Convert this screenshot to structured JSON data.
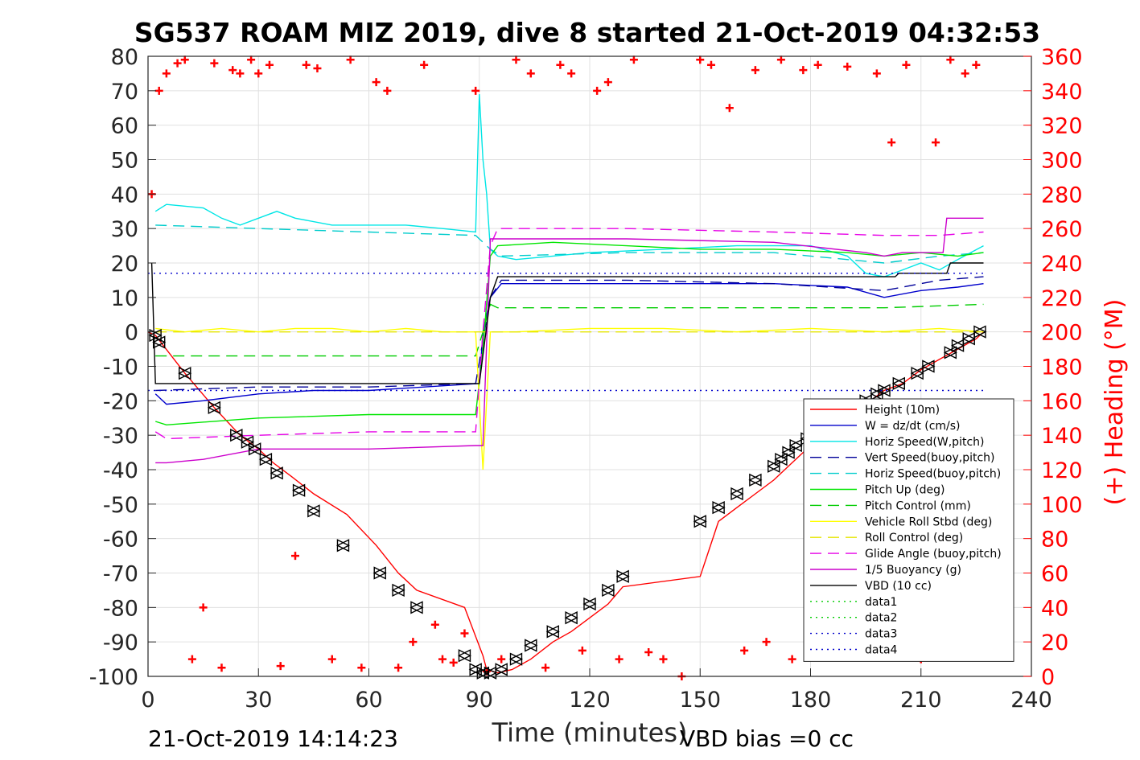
{
  "chart_data": {
    "type": "line",
    "title": "SG537 ROAM MIZ 2019, dive 8 started 21-Oct-2019 04:32:53",
    "xlabel": "Time (minutes)",
    "ylabel": "",
    "y2label": "(+) Heading (°M)",
    "xlim": [
      0,
      240
    ],
    "ylim": [
      -100,
      80
    ],
    "y2lim": [
      0,
      360
    ],
    "xticks": [
      "0",
      "30",
      "60",
      "90",
      "120",
      "150",
      "180",
      "210",
      "240"
    ],
    "yticks": [
      "-100",
      "-90",
      "-80",
      "-70",
      "-60",
      "-50",
      "-40",
      "-30",
      "-20",
      "-10",
      "0",
      "10",
      "20",
      "30",
      "40",
      "50",
      "60",
      "70",
      "80"
    ],
    "y2ticks": [
      "0",
      "20",
      "40",
      "60",
      "80",
      "100",
      "120",
      "140",
      "160",
      "180",
      "200",
      "220",
      "240",
      "260",
      "280",
      "300",
      "320",
      "340",
      "360"
    ],
    "grid": true,
    "legend_position": "bottom-right",
    "footer_left": "21-Oct-2019 14:14:23",
    "footer_right": "VBD bias =0 cc",
    "series": [
      {
        "name": "Height (10m)",
        "color": "#ff0000",
        "style": "solid",
        "x": [
          0,
          2,
          10,
          18,
          25,
          30,
          34,
          39,
          45,
          54,
          62,
          68,
          73,
          86,
          91,
          92,
          95,
          99,
          104,
          110,
          115,
          120,
          125,
          129,
          150,
          155,
          160,
          165,
          170,
          175,
          180,
          190,
          200,
          205,
          210,
          215,
          220,
          225,
          227
        ],
        "y": [
          0,
          -1,
          -12,
          -22,
          -30,
          -34,
          -38,
          -42,
          -47,
          -53,
          -62,
          -70,
          -75,
          -80,
          -94,
          -98,
          -99,
          -98,
          -95,
          -90,
          -87,
          -83,
          -79,
          -74,
          -71,
          -55,
          -51,
          -47,
          -43,
          -38,
          -33,
          -25,
          -17,
          -15,
          -11,
          -8,
          -5,
          -2,
          0
        ]
      },
      {
        "name": "W = dz/dt (cm/s)",
        "color": "#0000cc",
        "style": "solid",
        "x": [
          2,
          5,
          15,
          30,
          45,
          60,
          75,
          90,
          91,
          93,
          96,
          110,
          130,
          150,
          170,
          190,
          200,
          210,
          220,
          227
        ],
        "y": [
          -18,
          -21,
          -20,
          -18,
          -17,
          -17,
          -16,
          -15,
          0,
          10,
          14,
          14,
          14,
          14,
          14,
          13,
          10,
          12,
          13,
          14
        ]
      },
      {
        "name": "Horiz Speed(W,pitch)",
        "color": "#00e6e6",
        "style": "solid",
        "x": [
          2,
          5,
          15,
          20,
          25,
          30,
          35,
          40,
          50,
          60,
          70,
          80,
          89,
          90,
          91,
          92,
          93,
          95,
          100,
          110,
          120,
          140,
          160,
          180,
          190,
          195,
          200,
          205,
          210,
          215,
          220,
          227
        ],
        "y": [
          35,
          37,
          36,
          33,
          31,
          33,
          35,
          33,
          31,
          31,
          31,
          30,
          29,
          69,
          50,
          40,
          24,
          22,
          21,
          22,
          23,
          24,
          25,
          25,
          22,
          17,
          16,
          18,
          20,
          18,
          21,
          25
        ]
      },
      {
        "name": "Vert Speed(buoy,pitch)",
        "color": "#000099",
        "style": "dashed",
        "x": [
          2,
          30,
          60,
          89,
          93,
          96,
          130,
          170,
          200,
          215,
          227
        ],
        "y": [
          -17,
          -16,
          -16,
          -15,
          10,
          15,
          15,
          14,
          12,
          15,
          16
        ]
      },
      {
        "name": "Horiz Speed(buoy,pitch)",
        "color": "#00cccc",
        "style": "dashed",
        "x": [
          2,
          30,
          60,
          89,
          93,
          96,
          130,
          170,
          200,
          215,
          227
        ],
        "y": [
          31,
          30,
          29,
          28,
          24,
          22,
          23,
          23,
          20,
          22,
          23
        ]
      },
      {
        "name": "Pitch Up (deg)",
        "color": "#00e600",
        "style": "solid",
        "x": [
          2,
          5,
          30,
          60,
          89,
          91,
          93,
          95,
          110,
          130,
          150,
          170,
          190,
          200,
          210,
          220,
          227
        ],
        "y": [
          -26,
          -27,
          -25,
          -24,
          -24,
          -5,
          22,
          25,
          26,
          25,
          24,
          24,
          23,
          22,
          23,
          22,
          23
        ]
      },
      {
        "name": "Pitch Control (mm)",
        "color": "#00cc00",
        "style": "dashed",
        "x": [
          2,
          30,
          60,
          89,
          91,
          93,
          95,
          130,
          170,
          200,
          227
        ],
        "y": [
          -7,
          -7,
          -7,
          -7,
          0,
          8,
          7,
          7,
          7,
          7,
          8
        ]
      },
      {
        "name": "Vehicle Roll Stbd (deg)",
        "color": "#ffff00",
        "style": "solid",
        "x": [
          2,
          10,
          20,
          30,
          40,
          50,
          60,
          70,
          80,
          89,
          91,
          93,
          100,
          120,
          140,
          160,
          180,
          200,
          215,
          227
        ],
        "y": [
          1,
          0,
          1,
          0,
          1,
          1,
          0,
          1,
          0,
          0,
          -40,
          0,
          0,
          1,
          1,
          0,
          1,
          0,
          1,
          0
        ]
      },
      {
        "name": "Roll Control (deg)",
        "color": "#e6e600",
        "style": "dashed",
        "x": [
          2,
          60,
          89,
          91,
          93,
          150,
          227
        ],
        "y": [
          0,
          0,
          0,
          0,
          0,
          0,
          0
        ]
      },
      {
        "name": "Glide Angle (buoy,pitch)",
        "color": "#e600e6",
        "style": "dashed",
        "x": [
          2,
          5,
          30,
          60,
          89,
          91,
          93,
          95,
          130,
          170,
          200,
          215,
          227
        ],
        "y": [
          -29,
          -31,
          -30,
          -29,
          -29,
          0,
          25,
          30,
          30,
          29,
          28,
          28,
          29
        ]
      },
      {
        "name": "1/5 Buoyancy (g)",
        "color": "#cc00cc",
        "style": "solid",
        "x": [
          2,
          5,
          15,
          30,
          60,
          89,
          91,
          93,
          95,
          130,
          170,
          195,
          200,
          205,
          216,
          217,
          227
        ],
        "y": [
          -38,
          -38,
          -37,
          -34,
          -34,
          -33,
          -33,
          27,
          27,
          27,
          26,
          23,
          22,
          23,
          23,
          33,
          33
        ]
      },
      {
        "name": "VBD (10 cc)",
        "color": "#000000",
        "style": "solid",
        "x": [
          1,
          2,
          89,
          90,
          93,
          95,
          203,
          204,
          217,
          218,
          227
        ],
        "y": [
          20,
          -15,
          -15,
          -15,
          10,
          16,
          16,
          17,
          17,
          20,
          20
        ]
      },
      {
        "name": "data1",
        "color": "#00cc00",
        "style": "dotted",
        "x": [],
        "y": []
      },
      {
        "name": "data2",
        "color": "#00cc00",
        "style": "dotted",
        "x": [],
        "y": []
      },
      {
        "name": "data3",
        "color": "#0000cc",
        "style": "dotted",
        "x": [
          0,
          227
        ],
        "y": [
          17,
          17
        ]
      },
      {
        "name": "data4",
        "color": "#0000cc",
        "style": "dotted",
        "x": [
          0,
          227
        ],
        "y": [
          -17,
          -17
        ]
      }
    ],
    "heading": {
      "axis": "right",
      "color": "#ff0000",
      "marker": "+",
      "x": [
        1,
        3,
        5,
        8,
        10,
        12,
        15,
        18,
        20,
        23,
        25,
        28,
        30,
        33,
        36,
        40,
        43,
        46,
        50,
        55,
        58,
        62,
        65,
        68,
        72,
        75,
        78,
        80,
        83,
        86,
        89,
        92,
        96,
        100,
        104,
        108,
        112,
        115,
        118,
        122,
        125,
        128,
        132,
        136,
        140,
        145,
        150,
        153,
        158,
        162,
        165,
        168,
        172,
        175,
        178,
        182,
        186,
        190,
        194,
        198,
        202,
        206,
        210,
        214,
        218,
        222,
        225
      ],
      "y": [
        280,
        340,
        350,
        356,
        358,
        10,
        40,
        356,
        5,
        352,
        350,
        358,
        350,
        355,
        6,
        70,
        355,
        353,
        10,
        358,
        5,
        345,
        340,
        5,
        20,
        355,
        30,
        10,
        8,
        25,
        340,
        3,
        10,
        358,
        350,
        5,
        355,
        350,
        15,
        340,
        345,
        10,
        358,
        14,
        10,
        0,
        358,
        355,
        330,
        15,
        352,
        20,
        358,
        10,
        352,
        355,
        12,
        354,
        20,
        350,
        310,
        355,
        10,
        310,
        358,
        350,
        355
      ]
    },
    "vbd_markers": {
      "marker": "triangle",
      "color": "#000000",
      "x": [
        2,
        3,
        10,
        18,
        24,
        27,
        29,
        32,
        35,
        41,
        45,
        53,
        63,
        68,
        73,
        86,
        89,
        91,
        93,
        96,
        100,
        104,
        110,
        115,
        120,
        125,
        129,
        150,
        155,
        160,
        165,
        170,
        172,
        174,
        176,
        179,
        182,
        185,
        190,
        195,
        198,
        200,
        204,
        209,
        212,
        218,
        220,
        223,
        226
      ],
      "y": [
        -1,
        -3,
        -12,
        -22,
        -30,
        -32,
        -34,
        -37,
        -41,
        -46,
        -52,
        -62,
        -70,
        -75,
        -80,
        -94,
        -98,
        -99,
        -99,
        -98,
        -95,
        -91,
        -87,
        -83,
        -79,
        -75,
        -71,
        -55,
        -51,
        -47,
        -43,
        -39,
        -37,
        -35,
        -33,
        -31,
        -29,
        -27,
        -24,
        -20,
        -18,
        -17,
        -15,
        -12,
        -10,
        -6,
        -4,
        -2,
        0
      ]
    }
  }
}
